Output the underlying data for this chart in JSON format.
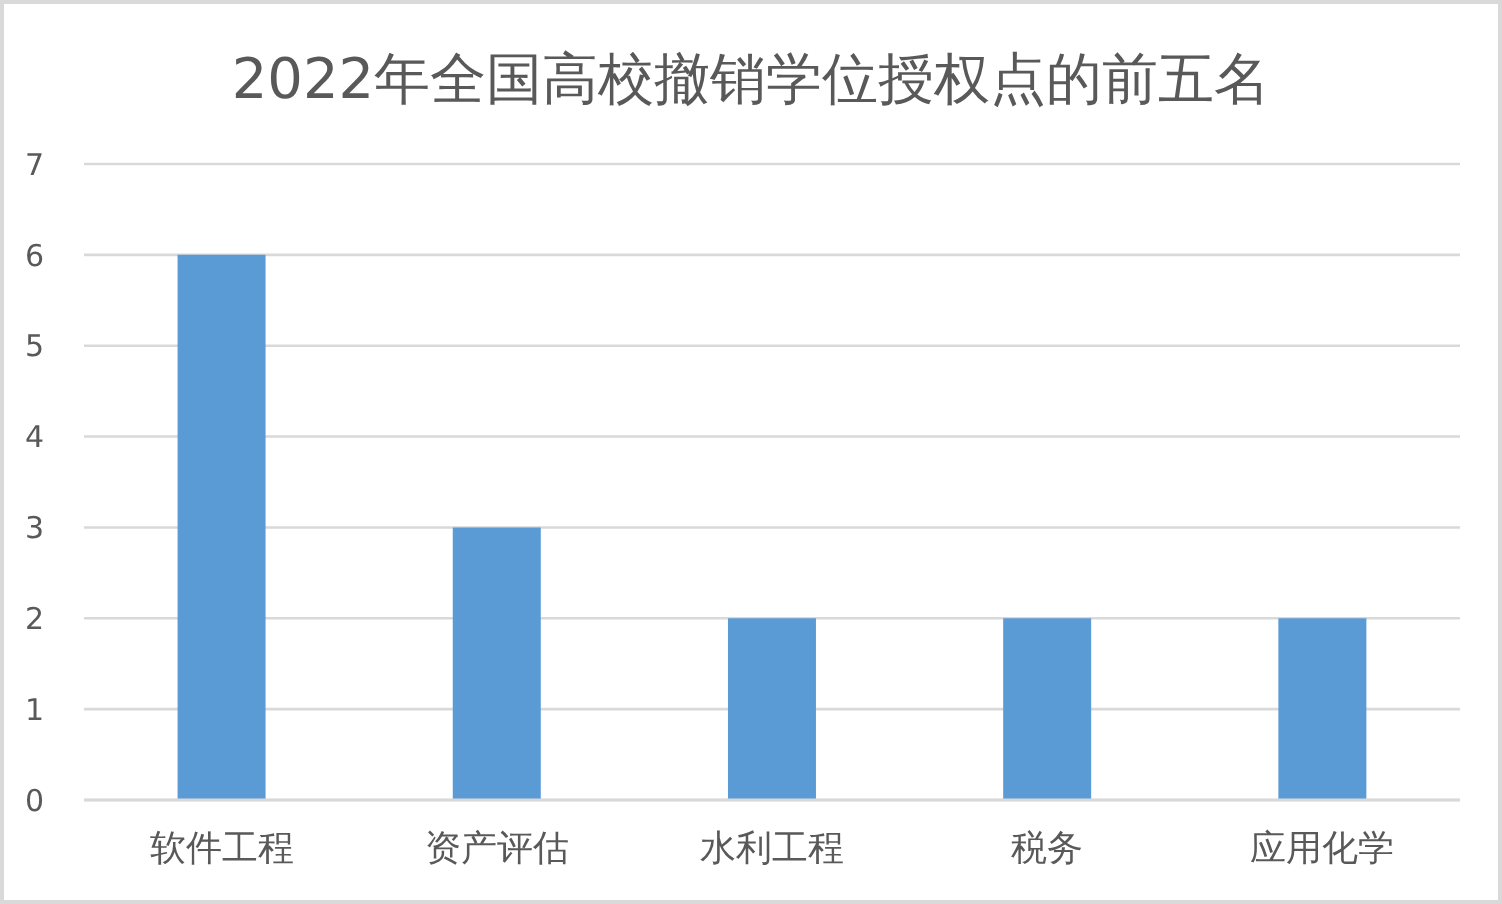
{
  "chart_data": {
    "type": "bar",
    "title": "2022年全国高校撤销学位授权点的前五名",
    "categories": [
      "软件工程",
      "资产评估",
      "水利工程",
      "税务",
      "应用化学"
    ],
    "values": [
      6,
      3,
      2,
      2,
      2
    ],
    "color": "#5b9bd5",
    "ylim": [
      0,
      7
    ],
    "yticks": [
      0,
      1,
      2,
      3,
      4,
      5,
      6,
      7
    ],
    "grid": "y"
  }
}
